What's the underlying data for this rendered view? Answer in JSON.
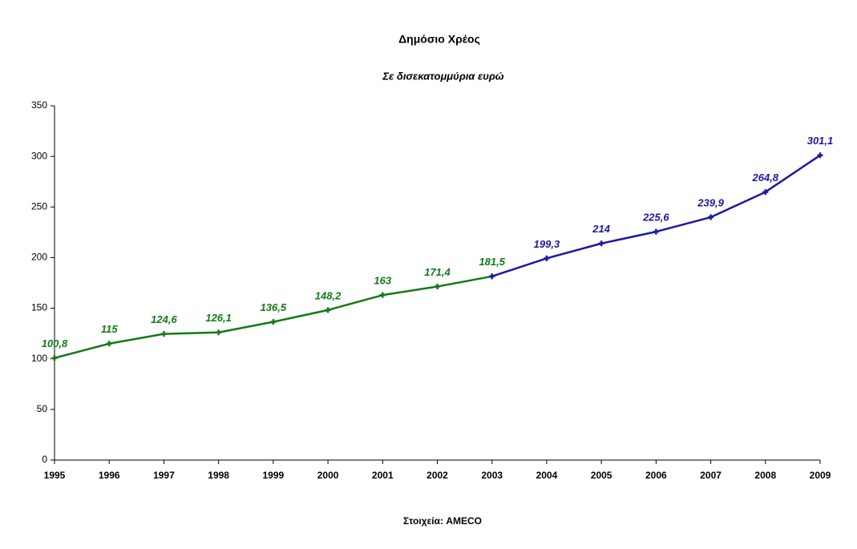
{
  "chart_data": {
    "type": "line",
    "title": "Δημόσιο Χρέος",
    "subtitle": "Σε δισεκατομμύρια ευρώ",
    "source": "Στοιχεία: AMECO",
    "categories": [
      "1995",
      "1996",
      "1997",
      "1998",
      "1999",
      "2000",
      "2001",
      "2002",
      "2003",
      "2004",
      "2005",
      "2006",
      "2007",
      "2008",
      "2009"
    ],
    "series": [
      {
        "color": "#13791a",
        "values": [
          100.8,
          115,
          124.6,
          126.1,
          136.5,
          148.2,
          163,
          171.4,
          181.5,
          null,
          null,
          null,
          null,
          null,
          null
        ],
        "value_labels": [
          "100,8",
          "115",
          "124,6",
          "126,1",
          "136,5",
          "148,2",
          "163",
          "171,4",
          "181,5",
          null,
          null,
          null,
          null,
          null,
          null
        ]
      },
      {
        "color": "#1a1a9e",
        "values": [
          null,
          null,
          null,
          null,
          null,
          null,
          null,
          null,
          181.5,
          199.3,
          214,
          225.6,
          239.9,
          264.8,
          301.1
        ],
        "value_labels": [
          null,
          null,
          null,
          null,
          null,
          null,
          null,
          null,
          null,
          "199,3",
          "214",
          "225,6",
          "239,9",
          "264,8",
          "301,1"
        ]
      }
    ],
    "ylim": [
      0,
      350
    ],
    "yticks": [
      0,
      50,
      100,
      150,
      200,
      250,
      300,
      350
    ],
    "grid": false
  }
}
